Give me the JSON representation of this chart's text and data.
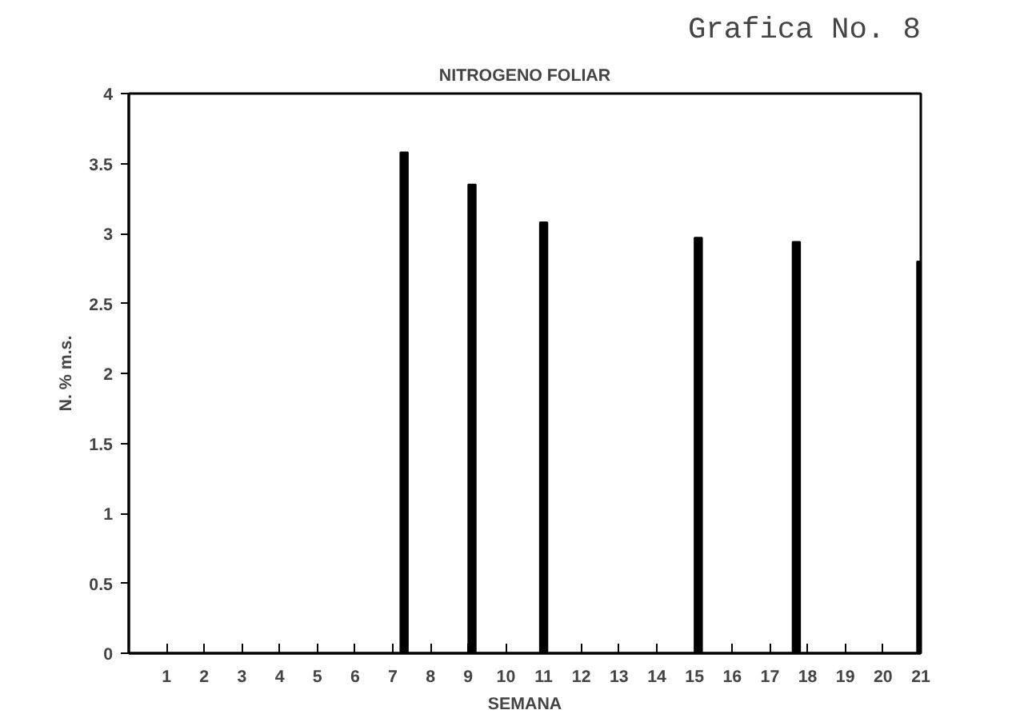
{
  "chart_data": {
    "type": "bar",
    "title": "Grafica No. 8",
    "subtitle": "NITROGENO FOLIAR",
    "xlabel": "SEMANA",
    "ylabel": "N. % m.s.",
    "x": [
      7.3,
      9.1,
      11,
      15.1,
      17.7,
      21
    ],
    "values": [
      3.58,
      3.35,
      3.08,
      2.97,
      2.94,
      2.8
    ],
    "color": "#000000",
    "xlim": [
      0,
      21
    ],
    "xticks": [
      1,
      2,
      3,
      4,
      5,
      6,
      7,
      8,
      9,
      10,
      11,
      12,
      13,
      14,
      15,
      16,
      17,
      18,
      19,
      20,
      21
    ],
    "ylim": [
      0,
      4
    ],
    "yticks": [
      0,
      0.5,
      1,
      1.5,
      2,
      2.5,
      3,
      3.5,
      4
    ],
    "grid": false
  }
}
